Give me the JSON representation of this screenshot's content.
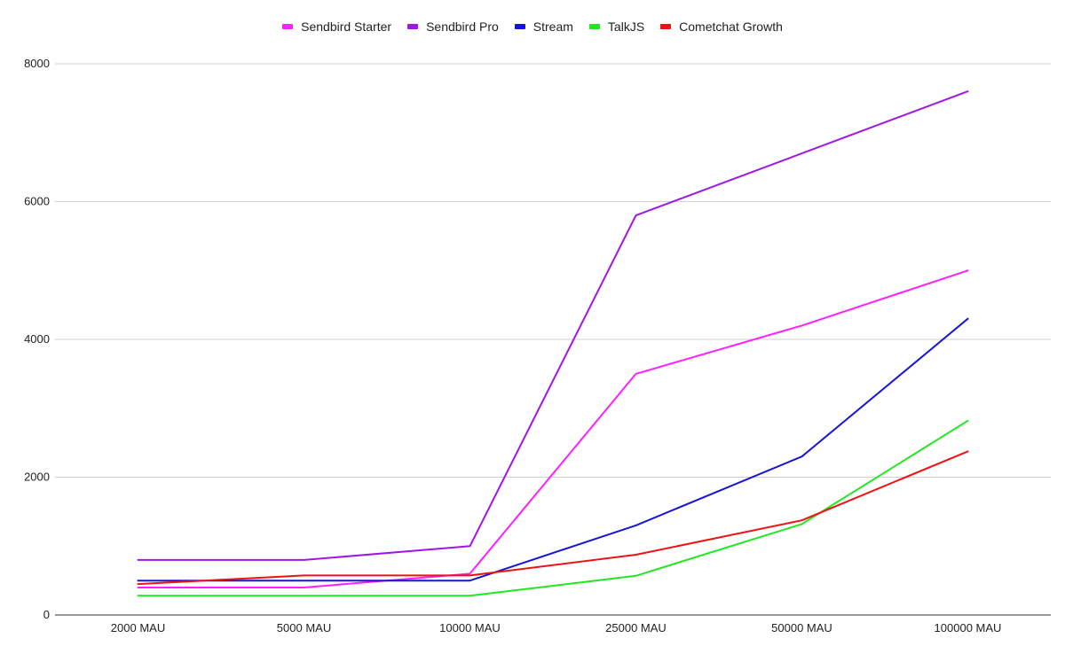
{
  "chart_data": {
    "type": "line",
    "title": "",
    "xlabel": "",
    "ylabel": "",
    "categories": [
      "2000 MAU",
      "5000 MAU",
      "10000 MAU",
      "25000 MAU",
      "50000 MAU",
      "100000 MAU"
    ],
    "ylim": [
      0,
      8000
    ],
    "yticks": [
      0,
      2000,
      4000,
      6000,
      8000
    ],
    "grid": true,
    "legend_position": "top",
    "series": [
      {
        "name": "Sendbird Starter",
        "color": "#ff1fff",
        "values": [
          399,
          399,
          599,
          3500,
          4200,
          5000
        ]
      },
      {
        "name": "Sendbird Pro",
        "color": "#9f17e6",
        "values": [
          799,
          799,
          999,
          5800,
          6700,
          7600
        ]
      },
      {
        "name": "Stream",
        "color": "#1616d6",
        "values": [
          499,
          499,
          499,
          1300,
          2300,
          4300
        ]
      },
      {
        "name": "TalkJS",
        "color": "#1fe81f",
        "values": [
          279,
          279,
          279,
          569,
          1319,
          2819
        ]
      },
      {
        "name": "Cometchat Growth",
        "color": "#ee1212",
        "values": [
          449,
          574,
          574,
          874,
          1374,
          2374
        ]
      }
    ]
  }
}
